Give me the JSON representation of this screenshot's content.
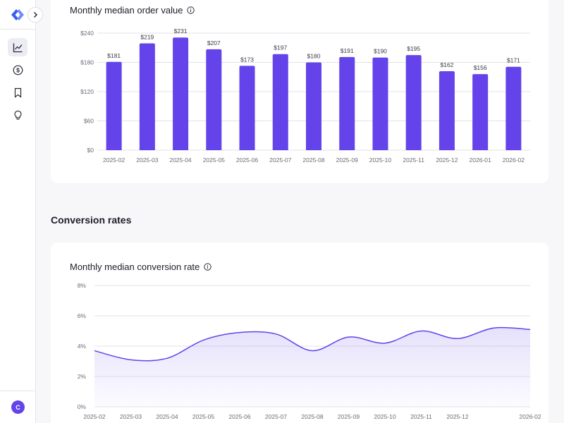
{
  "sidebar": {
    "nav": [
      {
        "icon": "line-chart-icon",
        "active": true
      },
      {
        "icon": "dollar-icon",
        "active": false
      },
      {
        "icon": "bookmark-icon",
        "active": false
      },
      {
        "icon": "lightbulb-icon",
        "active": false
      }
    ],
    "avatar_initial": "C"
  },
  "section": {
    "conversion_title": "Conversion rates"
  },
  "colors": {
    "accent": "#6443ea",
    "area_fill": "#6443ea",
    "grid": "#e3e3ea",
    "tick": "#6b6b78"
  },
  "chart_data": [
    {
      "type": "bar",
      "title": "Monthly median order value",
      "categories": [
        "2025-02",
        "2025-03",
        "2025-04",
        "2025-05",
        "2025-06",
        "2025-07",
        "2025-08",
        "2025-09",
        "2025-10",
        "2025-11",
        "2025-12",
        "2026-01",
        "2026-02"
      ],
      "values": [
        181,
        219,
        231,
        207,
        173,
        197,
        180,
        191,
        190,
        195,
        162,
        156,
        171
      ],
      "value_labels": [
        "$181",
        "$219",
        "$231",
        "$207",
        "$173",
        "$197",
        "$180",
        "$191",
        "$190",
        "$195",
        "$162",
        "$156",
        "$171"
      ],
      "yticks": [
        "$0",
        "$60",
        "$120",
        "$180",
        "$240"
      ],
      "ytick_values": [
        0,
        60,
        120,
        180,
        240
      ],
      "ylim": [
        0,
        240
      ],
      "grid": true
    },
    {
      "type": "area",
      "title": "Monthly median conversion rate",
      "x": [
        "2025-02",
        "2025-03",
        "2025-04",
        "2025-05",
        "2025-06",
        "2025-07",
        "2025-08",
        "2025-09",
        "2025-10",
        "2025-11",
        "2025-12",
        "2026-01",
        "2026-02"
      ],
      "xtick_labels": [
        "2025-02",
        "2025-03",
        "2025-04",
        "2025-05",
        "2025-06",
        "2025-07",
        "2025-08",
        "2025-09",
        "2025-10",
        "2025-11",
        "2025-12",
        "",
        "2026-02"
      ],
      "values": [
        3.7,
        3.1,
        3.2,
        4.4,
        4.9,
        4.8,
        3.7,
        4.6,
        4.2,
        5.0,
        4.5,
        5.2,
        5.1
      ],
      "yticks": [
        "0%",
        "2%",
        "4%",
        "6%",
        "8%"
      ],
      "ytick_values": [
        0,
        2,
        4,
        6,
        8
      ],
      "ylim": [
        0,
        8
      ],
      "grid": true
    }
  ]
}
